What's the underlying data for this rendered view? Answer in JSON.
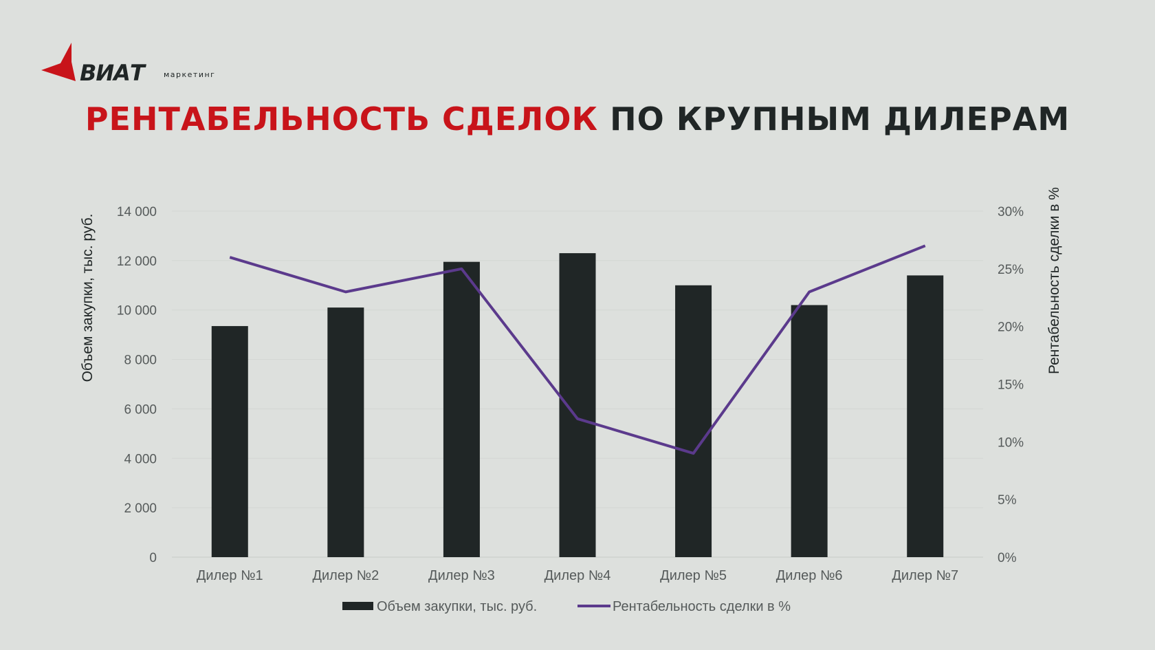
{
  "logo": {
    "name": "ВИАТ",
    "sub": "маркетинг",
    "red": "#c8141a",
    "dark": "#202626"
  },
  "title": {
    "part1": "РЕНТАБЕЛЬНОСТЬ СДЕЛОК",
    "part2": "ПО КРУПНЫМ ДИЛЕРАМ",
    "color1": "#c8141a",
    "color2": "#202626"
  },
  "chart_data": {
    "type": "bar",
    "categories": [
      "Дилер №1",
      "Дилер №2",
      "Дилер №3",
      "Дилер №4",
      "Дилер №5",
      "Дилер №6",
      "Дилер №7"
    ],
    "series": [
      {
        "name": "Объем закупки, тыс. руб.",
        "kind": "bar",
        "axis": "left",
        "color": "#202626",
        "values": [
          9350,
          10100,
          11950,
          12300,
          11000,
          10200,
          11400
        ]
      },
      {
        "name": "Рентабельность сделки в %",
        "kind": "line",
        "axis": "right",
        "color": "#5b3a8c",
        "values": [
          0.26,
          0.23,
          0.25,
          0.12,
          0.09,
          0.23,
          0.27
        ]
      }
    ],
    "ylabel": "Объем закупки, тыс. руб.",
    "y2label": "Рентабельность сделки в %",
    "ylim": [
      0,
      14000
    ],
    "y2lim": [
      0,
      0.3
    ],
    "yticks": [
      "0",
      "2 000",
      "4 000",
      "6 000",
      "8 000",
      "10 000",
      "12 000",
      "14 000"
    ],
    "y2ticks": [
      "0%",
      "5%",
      "10%",
      "15%",
      "20%",
      "25%",
      "30%"
    ],
    "grid": true,
    "legend": "bottom"
  }
}
